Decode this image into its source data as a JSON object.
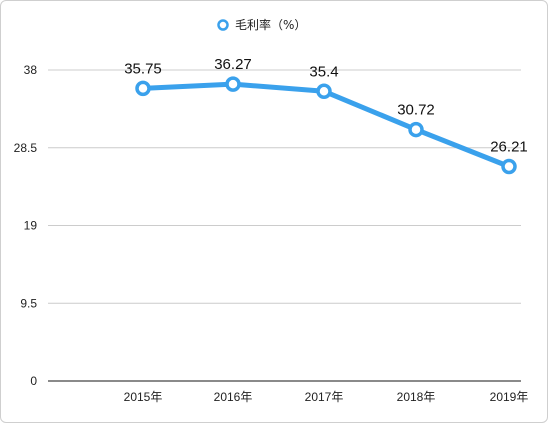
{
  "chart_data": {
    "type": "line",
    "categories": [
      "2015年",
      "2016年",
      "2017年",
      "2018年",
      "2019年"
    ],
    "series": [
      {
        "name": "毛利率（%）",
        "values": [
          35.75,
          36.27,
          35.4,
          30.72,
          26.21
        ],
        "color": "#3aa1ec"
      }
    ],
    "data_labels": [
      "35.75",
      "36.27",
      "35.4",
      "30.72",
      "26.21"
    ],
    "yticks": [
      0,
      9.5,
      19,
      28.5,
      38
    ],
    "ytick_labels": [
      "0",
      "9.5",
      "19",
      "28.5",
      "38"
    ],
    "ylim": [
      0,
      38
    ],
    "grid": true,
    "legend_position": "top-center",
    "title": "",
    "xlabel": "",
    "ylabel": ""
  }
}
